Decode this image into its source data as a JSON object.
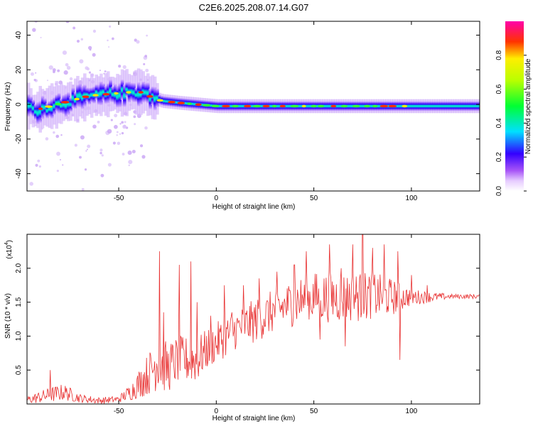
{
  "title": "C2E6.2025.208.07.14.G07",
  "chart_data": [
    {
      "type": "heatmap",
      "title": "C2E6.2025.208.07.14.G07",
      "xlabel": "Height of straight line (km)",
      "ylabel": "Frequency (Hz)",
      "xlim": [
        -97,
        135
      ],
      "ylim": [
        -50,
        48
      ],
      "xticks": [
        -50,
        0,
        50,
        100
      ],
      "yticks": [
        -40,
        -20,
        0,
        20,
        40
      ],
      "colorbar": {
        "label": "Normalized spectral amplitude",
        "range": [
          0,
          1
        ],
        "ticks": [
          0.0,
          0.2,
          0.4,
          0.6,
          0.8
        ]
      },
      "ridge_frequency": [
        {
          "x": -95,
          "y": -4
        },
        {
          "x": -85,
          "y": -1
        },
        {
          "x": -75,
          "y": 2
        },
        {
          "x": -65,
          "y": 5
        },
        {
          "x": -55,
          "y": 6
        },
        {
          "x": -45,
          "y": 7
        },
        {
          "x": -38,
          "y": 7
        },
        {
          "x": -33,
          "y": 4
        },
        {
          "x": -28,
          "y": 2
        },
        {
          "x": -20,
          "y": 1
        },
        {
          "x": -10,
          "y": 0
        },
        {
          "x": 0,
          "y": -1
        },
        {
          "x": 20,
          "y": -1
        },
        {
          "x": 50,
          "y": -1
        },
        {
          "x": 80,
          "y": -1
        },
        {
          "x": 110,
          "y": -1
        },
        {
          "x": 135,
          "y": -1
        }
      ]
    },
    {
      "type": "line",
      "xlabel": "Height of straight line (km)",
      "ylabel": "SNR (10 * v/v)",
      "yscale_label": "(x10",
      "yscale_exp": "4",
      "scale_suffix": ")",
      "xlim": [
        -97,
        135
      ],
      "ylim": [
        0,
        2.5
      ],
      "xticks": [
        -50,
        0,
        50,
        100
      ],
      "yticks": [
        0.5,
        1.0,
        1.5,
        2.0
      ],
      "ytick_labels": [
        "0.5",
        "1.0",
        "1.5",
        "2.0"
      ],
      "color": "#e83030",
      "envelope": [
        {
          "x": -97,
          "lo": 0.0,
          "hi": 0.12
        },
        {
          "x": -85,
          "lo": 0.02,
          "hi": 0.25
        },
        {
          "x": -78,
          "lo": 0.05,
          "hi": 0.3
        },
        {
          "x": -70,
          "lo": 0.02,
          "hi": 0.15
        },
        {
          "x": -60,
          "lo": 0.0,
          "hi": 0.1
        },
        {
          "x": -50,
          "lo": 0.02,
          "hi": 0.12
        },
        {
          "x": -44,
          "lo": 0.05,
          "hi": 0.3
        },
        {
          "x": -38,
          "lo": 0.1,
          "hi": 0.6
        },
        {
          "x": -33,
          "lo": 0.15,
          "hi": 0.85
        },
        {
          "x": -30,
          "lo": 0.2,
          "hi": 1.1
        },
        {
          "x": -25,
          "lo": 0.15,
          "hi": 0.9
        },
        {
          "x": -20,
          "lo": 0.3,
          "hi": 1.0
        },
        {
          "x": -15,
          "lo": 0.3,
          "hi": 1.0
        },
        {
          "x": -10,
          "lo": 0.3,
          "hi": 1.0
        },
        {
          "x": -5,
          "lo": 0.5,
          "hi": 1.1
        },
        {
          "x": 0,
          "lo": 0.6,
          "hi": 1.2
        },
        {
          "x": 10,
          "lo": 0.8,
          "hi": 1.4
        },
        {
          "x": 20,
          "lo": 0.9,
          "hi": 1.55
        },
        {
          "x": 30,
          "lo": 1.05,
          "hi": 1.7
        },
        {
          "x": 40,
          "lo": 1.15,
          "hi": 1.85
        },
        {
          "x": 50,
          "lo": 1.2,
          "hi": 1.95
        },
        {
          "x": 60,
          "lo": 1.2,
          "hi": 1.95
        },
        {
          "x": 70,
          "lo": 1.2,
          "hi": 1.95
        },
        {
          "x": 80,
          "lo": 1.25,
          "hi": 1.95
        },
        {
          "x": 90,
          "lo": 1.3,
          "hi": 1.85
        },
        {
          "x": 100,
          "lo": 1.45,
          "hi": 1.7
        },
        {
          "x": 110,
          "lo": 1.5,
          "hi": 1.65
        },
        {
          "x": 120,
          "lo": 1.55,
          "hi": 1.62
        },
        {
          "x": 135,
          "lo": 1.55,
          "hi": 1.62
        }
      ],
      "spikes": [
        {
          "x": -85,
          "y": 0.5
        },
        {
          "x": -29,
          "y": 2.25
        },
        {
          "x": -27,
          "y": 1.35
        },
        {
          "x": -19,
          "y": 2.05
        },
        {
          "x": -13,
          "y": 2.1
        },
        {
          "x": -10,
          "y": 1.5
        },
        {
          "x": -3,
          "y": 1.3
        },
        {
          "x": 4,
          "y": 1.75
        },
        {
          "x": 8,
          "y": 1.35
        },
        {
          "x": 14,
          "y": 1.75
        },
        {
          "x": 22,
          "y": 1.85
        },
        {
          "x": 31,
          "y": 1.95
        },
        {
          "x": 40,
          "y": 2.05
        },
        {
          "x": 46,
          "y": 2.25
        },
        {
          "x": 53,
          "y": 0.95
        },
        {
          "x": 58,
          "y": 2.35
        },
        {
          "x": 64,
          "y": 2.0
        },
        {
          "x": 66,
          "y": 0.85
        },
        {
          "x": 70,
          "y": 2.35
        },
        {
          "x": 75,
          "y": 2.5
        },
        {
          "x": 80,
          "y": 2.3
        },
        {
          "x": 86,
          "y": 2.35
        },
        {
          "x": 93,
          "y": 2.25
        },
        {
          "x": 94,
          "y": 0.65
        },
        {
          "x": 100,
          "y": 1.9
        },
        {
          "x": 108,
          "y": 1.75
        }
      ]
    }
  ]
}
